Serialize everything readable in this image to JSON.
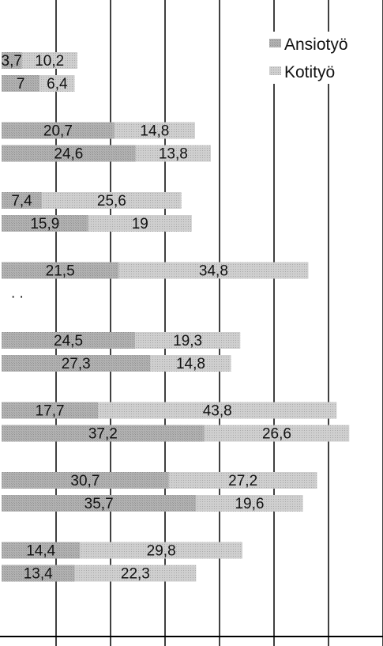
{
  "chart_data": {
    "type": "bar",
    "orientation": "horizontal",
    "stacked": true,
    "grid": true,
    "legend_position": "top-right",
    "xlim": [
      0,
      70
    ],
    "colors": {
      "Ansiotyö": "#a9a9a9",
      "Kotityö": "#c8c8c8"
    },
    "legend": [
      {
        "label": "Ansiotyö"
      },
      {
        "label": "Kotityö"
      }
    ],
    "groups": [
      {
        "rows": [
          [
            3.7,
            10.2
          ],
          [
            7,
            6.4
          ]
        ]
      },
      {
        "rows": [
          [
            20.7,
            14.8
          ],
          [
            24.6,
            13.8
          ]
        ]
      },
      {
        "rows": [
          [
            7.4,
            25.6
          ],
          [
            15.9,
            19
          ]
        ]
      },
      {
        "rows": [
          [
            21.5,
            34.8
          ],
          null
        ],
        "missing_label": ". ."
      },
      {
        "rows": [
          [
            24.5,
            19.3
          ],
          [
            27.3,
            14.8
          ]
        ]
      },
      {
        "rows": [
          [
            17.7,
            43.8
          ],
          [
            37.2,
            26.6
          ]
        ]
      },
      {
        "rows": [
          [
            30.7,
            27.2
          ],
          [
            35.7,
            19.6
          ]
        ]
      },
      {
        "rows": [
          [
            14.4,
            29.8
          ],
          [
            13.4,
            22.3
          ]
        ]
      }
    ],
    "value_labels": [
      [
        "3,7",
        "10,2"
      ],
      [
        "7",
        "6,4"
      ],
      [
        "20,7",
        "14,8"
      ],
      [
        "24,6",
        "13,8"
      ],
      [
        "7,4",
        "25,6"
      ],
      [
        "15,9",
        "19"
      ],
      [
        "21,5",
        "34,8"
      ],
      [
        "24,5",
        "19,3"
      ],
      [
        "27,3",
        "14,8"
      ],
      [
        "17,7",
        "43,8"
      ],
      [
        "37,2",
        "26,6"
      ],
      [
        "30,7",
        "27,2"
      ],
      [
        "35,7",
        "19,6"
      ],
      [
        "14,4",
        "29,8"
      ],
      [
        "13,4",
        "22,3"
      ]
    ]
  }
}
